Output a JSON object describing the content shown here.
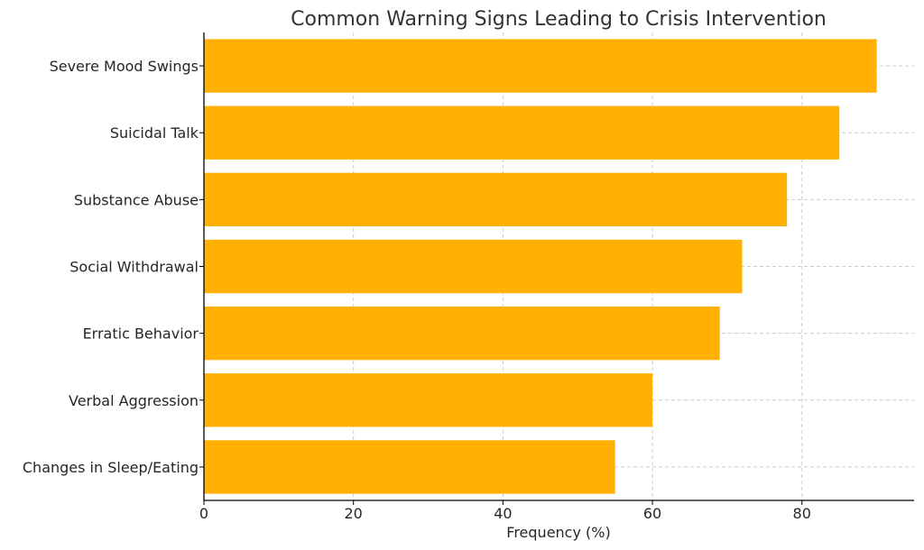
{
  "chart_data": {
    "type": "bar",
    "orientation": "horizontal",
    "title": "Common Warning Signs Leading to Crisis Intervention",
    "xlabel": "Frequency (%)",
    "ylabel": "",
    "categories": [
      "Severe Mood Swings",
      "Suicidal Talk",
      "Substance Abuse",
      "Social Withdrawal",
      "Erratic Behavior",
      "Verbal Aggression",
      "Changes in Sleep/Eating"
    ],
    "values": [
      90,
      85,
      78,
      72,
      69,
      60,
      55
    ],
    "xlim": [
      0,
      95
    ],
    "xticks": [
      0,
      20,
      40,
      60,
      80
    ],
    "grid": true,
    "bar_color": "#FFB000"
  }
}
